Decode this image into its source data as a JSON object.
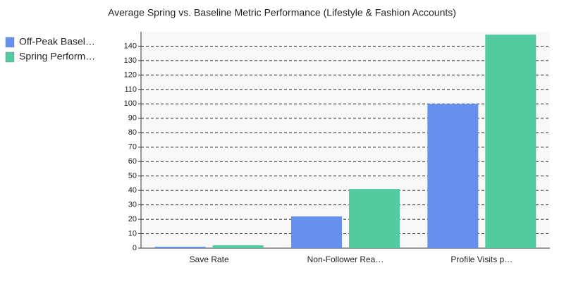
{
  "chart_data": {
    "type": "bar",
    "title": "Average Spring vs. Baseline Metric Performance (Lifestyle & Fashion Accounts)",
    "categories": [
      "Save Rate",
      "Non-Follower Rea…",
      "Profile Visits p…"
    ],
    "series": [
      {
        "name": "Off-Peak Basel…",
        "color": "#6690ee",
        "values": [
          1,
          22,
          100
        ]
      },
      {
        "name": "Spring Perform…",
        "color": "#52cba0",
        "values": [
          2,
          41,
          148
        ]
      }
    ],
    "ylim": [
      0,
      150
    ],
    "yticks": [
      0,
      10,
      20,
      30,
      40,
      50,
      60,
      70,
      80,
      90,
      100,
      110,
      120,
      130,
      140
    ],
    "grid": true,
    "legend": "top-left"
  }
}
